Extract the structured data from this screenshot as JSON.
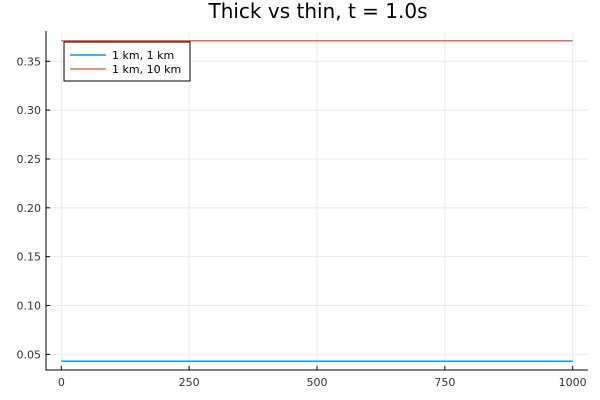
{
  "chart_data": {
    "type": "line",
    "title": "Thick vs thin, t = 1.0s",
    "xlabel": "",
    "ylabel": "",
    "xlim": [
      -30,
      1030
    ],
    "ylim": [
      0.034,
      0.381
    ],
    "xticks": [
      0,
      250,
      500,
      750,
      1000
    ],
    "xtick_labels": [
      "0",
      "250",
      "500",
      "750",
      "1000"
    ],
    "yticks": [
      0.05,
      0.1,
      0.15,
      0.2,
      0.25,
      0.3,
      0.35
    ],
    "ytick_labels": [
      "0.05",
      "0.10",
      "0.15",
      "0.20",
      "0.25",
      "0.30",
      "0.35"
    ],
    "grid": true,
    "legend_position": "top-left",
    "series": [
      {
        "name": "1 km, 1 km",
        "color": "#009AFA",
        "x": [
          0,
          1000
        ],
        "y": [
          0.043,
          0.043
        ]
      },
      {
        "name": "1 km, 10 km",
        "color": "#E26F46",
        "x": [
          0,
          1000
        ],
        "y": [
          0.371,
          0.371
        ]
      }
    ]
  }
}
